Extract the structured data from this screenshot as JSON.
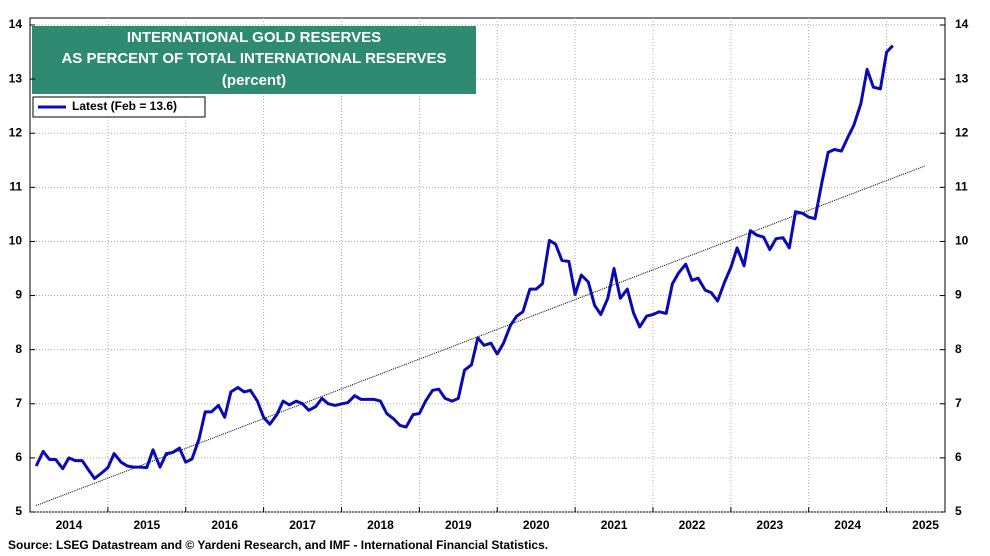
{
  "chart_data": {
    "type": "line",
    "title": [
      "INTERNATIONAL GOLD RESERVES",
      "AS PERCENT OF TOTAL INTERNATIONAL RESERVES",
      "(percent)"
    ],
    "source": "Source: LSEG Datastream and © Yardeni Research, and IMF - International Financial Statistics.",
    "x": [
      2014.08,
      2014.17,
      2014.25,
      2014.33,
      2014.42,
      2014.5,
      2014.58,
      2014.67,
      2014.75,
      2014.83,
      2014.92,
      2015.0,
      2015.08,
      2015.17,
      2015.25,
      2015.33,
      2015.42,
      2015.5,
      2015.58,
      2015.67,
      2015.75,
      2015.83,
      2015.92,
      2016.0,
      2016.08,
      2016.17,
      2016.25,
      2016.33,
      2016.42,
      2016.5,
      2016.58,
      2016.67,
      2016.75,
      2016.83,
      2016.92,
      2017.0,
      2017.08,
      2017.17,
      2017.25,
      2017.33,
      2017.42,
      2017.5,
      2017.58,
      2017.67,
      2017.75,
      2017.83,
      2017.92,
      2018.0,
      2018.08,
      2018.17,
      2018.25,
      2018.33,
      2018.42,
      2018.5,
      2018.58,
      2018.67,
      2018.75,
      2018.83,
      2018.92,
      2019.0,
      2019.08,
      2019.17,
      2019.25,
      2019.33,
      2019.42,
      2019.5,
      2019.58,
      2019.67,
      2019.75,
      2019.83,
      2019.92,
      2020.0,
      2020.08,
      2020.17,
      2020.25,
      2020.33,
      2020.42,
      2020.5,
      2020.58,
      2020.67,
      2020.75,
      2020.83,
      2020.92,
      2021.0,
      2021.08,
      2021.17,
      2021.25,
      2021.33,
      2021.42,
      2021.5,
      2021.58,
      2021.67,
      2021.75,
      2021.83,
      2021.92,
      2022.0,
      2022.08,
      2022.17,
      2022.25,
      2022.33,
      2022.42,
      2022.5,
      2022.58,
      2022.67,
      2022.75,
      2022.83,
      2022.92,
      2023.0,
      2023.08,
      2023.17,
      2023.25,
      2023.33,
      2023.42,
      2023.5,
      2023.58,
      2023.67,
      2023.75,
      2023.83,
      2023.92,
      2024.0,
      2024.08,
      2024.17,
      2024.25,
      2024.33,
      2024.42,
      2024.5,
      2024.58,
      2024.67,
      2024.75,
      2024.83,
      2024.92,
      2025.0,
      2025.08
    ],
    "series": [
      {
        "name": "Latest (Feb = 13.6)",
        "color": "#0a0ab4",
        "values": [
          5.85,
          6.12,
          5.97,
          5.97,
          5.8,
          6.0,
          5.95,
          5.95,
          5.78,
          5.62,
          5.72,
          5.82,
          6.08,
          5.92,
          5.85,
          5.83,
          5.83,
          5.82,
          6.15,
          5.83,
          6.08,
          6.1,
          6.18,
          5.92,
          5.98,
          6.35,
          6.85,
          6.85,
          6.97,
          6.75,
          7.22,
          7.3,
          7.22,
          7.25,
          7.05,
          6.75,
          6.62,
          6.8,
          7.05,
          6.98,
          7.05,
          7.0,
          6.88,
          6.95,
          7.1,
          7.0,
          6.97,
          7.0,
          7.02,
          7.15,
          7.08,
          7.08,
          7.08,
          7.05,
          6.82,
          6.72,
          6.6,
          6.57,
          6.8,
          6.82,
          7.05,
          7.25,
          7.27,
          7.1,
          7.05,
          7.1,
          7.62,
          7.72,
          8.22,
          8.08,
          8.12,
          7.92,
          8.12,
          8.45,
          8.62,
          8.7,
          9.12,
          9.12,
          9.22,
          10.02,
          9.95,
          9.65,
          9.63,
          9.02,
          9.38,
          9.25,
          8.82,
          8.65,
          8.95,
          9.5,
          8.95,
          9.12,
          8.68,
          8.42,
          8.62,
          8.65,
          8.7,
          8.67,
          9.22,
          9.42,
          9.58,
          9.28,
          9.32,
          9.1,
          9.05,
          8.9,
          9.25,
          9.52,
          9.88,
          9.55,
          10.2,
          10.12,
          10.08,
          9.85,
          10.05,
          10.07,
          9.88,
          10.55,
          10.52,
          10.45,
          10.42,
          11.1,
          11.65,
          11.7,
          11.67,
          11.92,
          12.15,
          12.55,
          13.18,
          12.85,
          12.82,
          13.5,
          13.62
        ]
      }
    ],
    "trend": {
      "color": "#000000",
      "x": [
        2014.08,
        2025.5
      ],
      "values": [
        5.12,
        11.4
      ]
    },
    "xlim": [
      2014,
      2025.75
    ],
    "xticks": [
      2014,
      2015,
      2016,
      2017,
      2018,
      2019,
      2020,
      2021,
      2022,
      2023,
      2024,
      2025
    ],
    "ylim": [
      5,
      14
    ],
    "yticks": [
      5,
      6,
      7,
      8,
      9,
      10,
      11,
      12,
      13,
      14
    ],
    "grid": true,
    "title_color": "#2f8a72"
  }
}
